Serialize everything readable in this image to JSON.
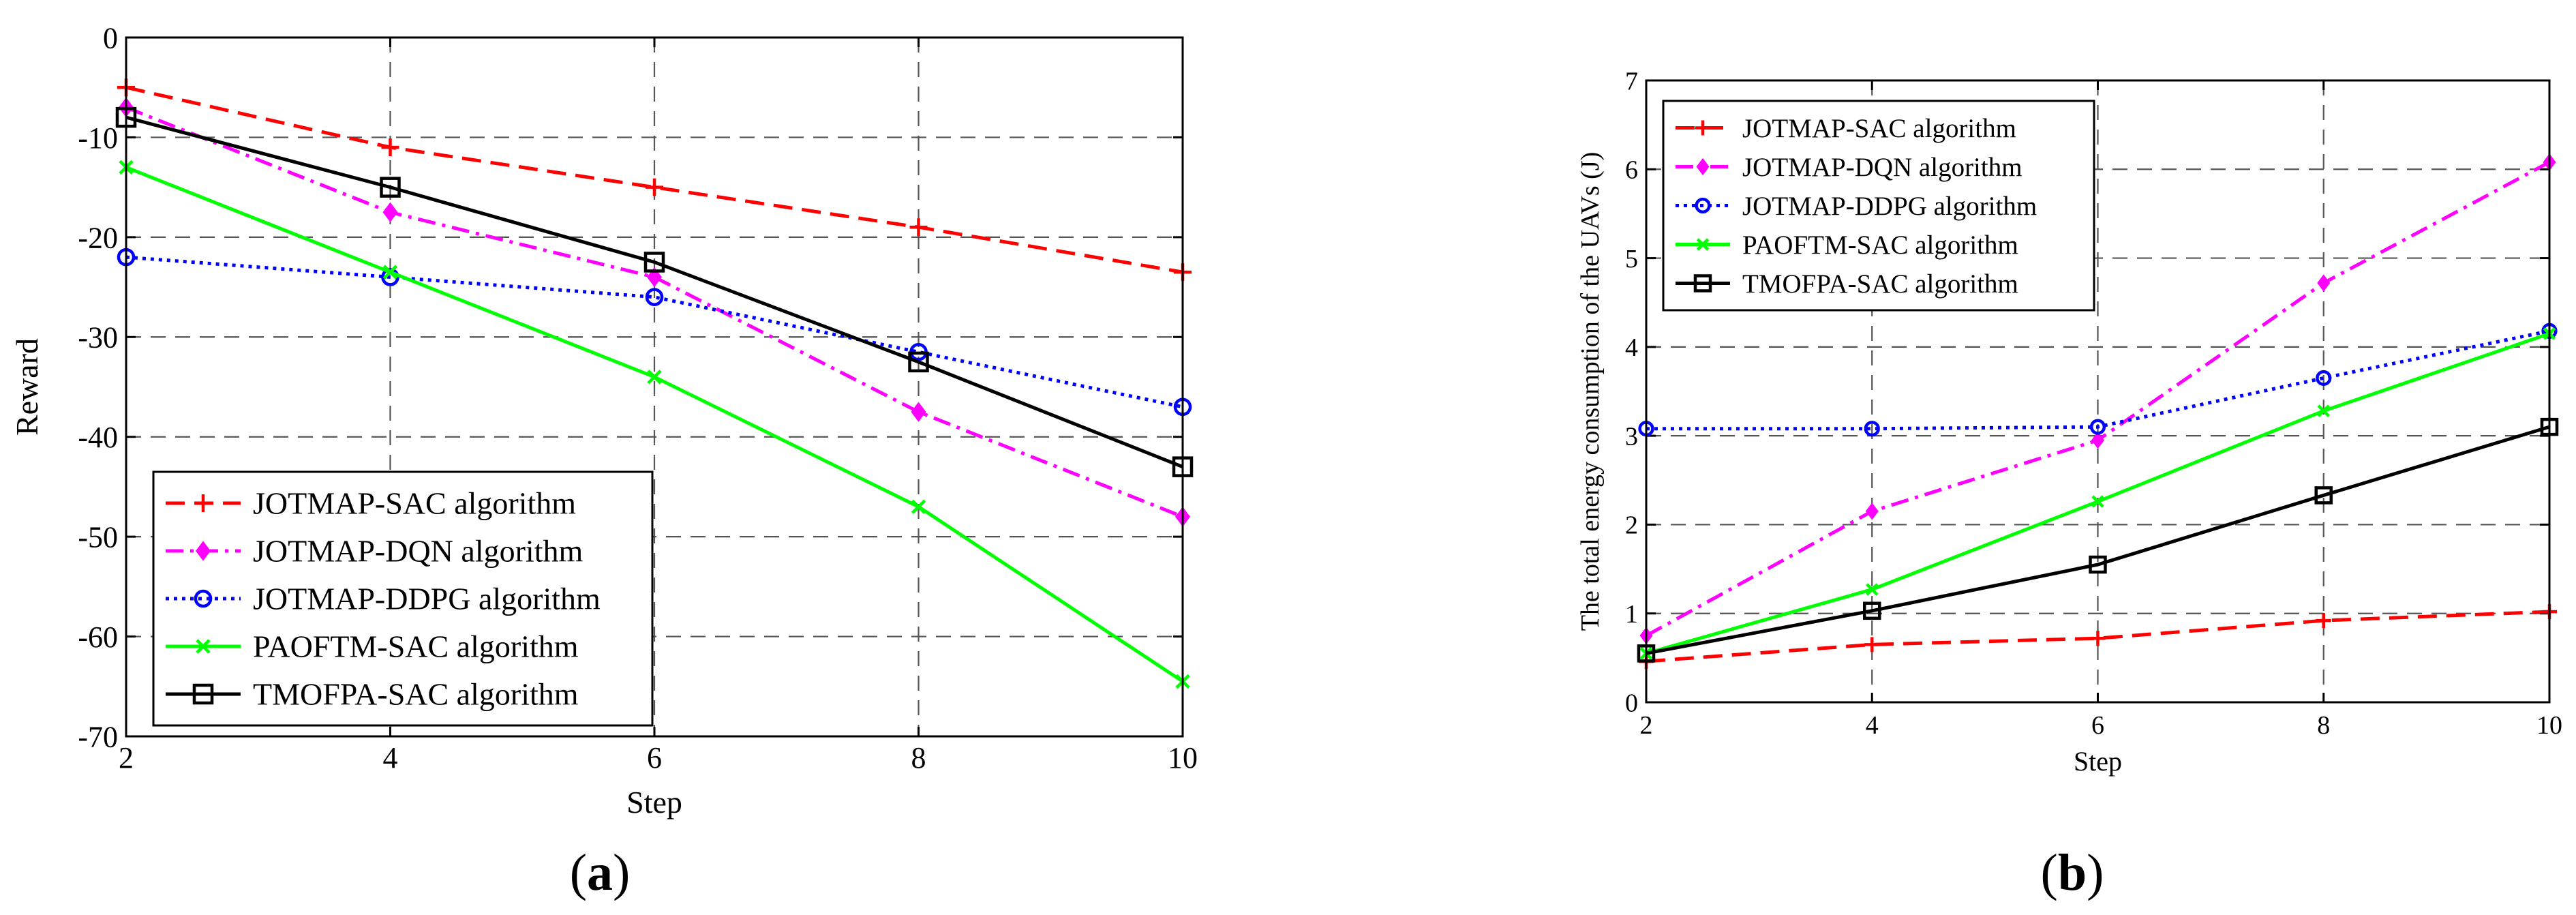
{
  "chart_data": [
    {
      "type": "line",
      "panel_label": "a",
      "xlabel": "Step",
      "ylabel": "Reward",
      "xlim": [
        2,
        10
      ],
      "ylim": [
        -70,
        0
      ],
      "xticks": [
        2,
        4,
        6,
        8,
        10
      ],
      "yticks": [
        0,
        -10,
        -20,
        -30,
        -40,
        -50,
        -60,
        -70
      ],
      "grid": true,
      "legend_position": "bottom-left",
      "x": [
        2,
        4,
        6,
        8,
        10
      ],
      "series": [
        {
          "name": "JOTMAP-SAC algorithm",
          "color": "#ff0000",
          "dash": "dashed",
          "marker": "plus",
          "values": [
            -5,
            -11,
            -15,
            -19,
            -23.5
          ]
        },
        {
          "name": "JOTMAP-DQN algorithm",
          "color": "#ff00ff",
          "dash": "dashdot",
          "marker": "diamond",
          "values": [
            -7,
            -17.5,
            -24,
            -37.5,
            -48
          ]
        },
        {
          "name": "JOTMAP-DDPG algorithm",
          "color": "#0000ff",
          "dash": "dotted",
          "marker": "circle",
          "values": [
            -22,
            -24,
            -26,
            -31.5,
            -37
          ]
        },
        {
          "name": "PAOFTM-SAC algorithm",
          "color": "#00ff00",
          "dash": "solid",
          "marker": "x",
          "values": [
            -13,
            -23.5,
            -34,
            -47,
            -64.5
          ]
        },
        {
          "name": "TMOFPA-SAC algorithm",
          "color": "#000000",
          "dash": "solid",
          "marker": "square",
          "values": [
            -8,
            -15,
            -22.5,
            -32.5,
            -43
          ]
        }
      ]
    },
    {
      "type": "line",
      "panel_label": "b",
      "xlabel": "Step",
      "ylabel": "The total energy consumption of the UAVs (J)",
      "xlim": [
        2,
        10
      ],
      "ylim": [
        0,
        7
      ],
      "xticks": [
        2,
        4,
        6,
        8,
        10
      ],
      "yticks": [
        0,
        1,
        2,
        3,
        4,
        5,
        6,
        7
      ],
      "grid": true,
      "legend_position": "top-left",
      "x": [
        2,
        4,
        6,
        8,
        10
      ],
      "series": [
        {
          "name": "JOTMAP-SAC algorithm",
          "color": "#ff0000",
          "dash": "dashed",
          "marker": "plus",
          "values": [
            0.46,
            0.65,
            0.72,
            0.92,
            1.02
          ]
        },
        {
          "name": "JOTMAP-DQN algorithm",
          "color": "#ff00ff",
          "dash": "dashdot",
          "marker": "diamond",
          "values": [
            0.75,
            2.15,
            2.95,
            4.72,
            6.08
          ]
        },
        {
          "name": "JOTMAP-DDPG algorithm",
          "color": "#0000ff",
          "dash": "dotted",
          "marker": "circle",
          "values": [
            3.08,
            3.08,
            3.1,
            3.65,
            4.18
          ]
        },
        {
          "name": "PAOFTM-SAC algorithm",
          "color": "#00ff00",
          "dash": "solid",
          "marker": "x",
          "values": [
            0.55,
            1.27,
            2.26,
            3.28,
            4.15
          ]
        },
        {
          "name": "TMOFPA-SAC algorithm",
          "color": "#000000",
          "dash": "solid",
          "marker": "square",
          "values": [
            0.55,
            1.03,
            1.55,
            2.33,
            3.1
          ]
        }
      ]
    }
  ]
}
